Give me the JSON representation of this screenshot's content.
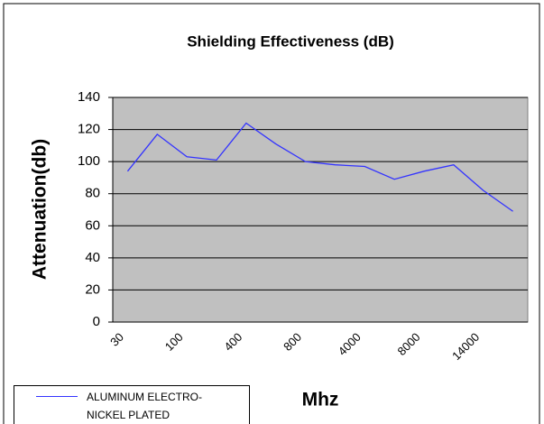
{
  "chart_data": {
    "type": "line",
    "title": "Shielding Effectiveness (dB)",
    "y_label": "Attenuation(db)",
    "x_label": "Mhz",
    "categories": [
      "30",
      null,
      "100",
      null,
      "400",
      null,
      "800",
      null,
      "4000",
      null,
      "8000",
      null,
      "14000",
      null
    ],
    "series": [
      {
        "name": "ALUMINUM ELECTRO-NICKEL PLATED",
        "color": "#3333ff",
        "values": [
          94,
          117,
          103,
          101,
          124,
          111,
          100,
          98,
          97,
          89,
          94,
          98,
          82,
          69
        ]
      }
    ],
    "ylim": [
      0,
      140
    ],
    "yticks": [
      0,
      20,
      40,
      60,
      80,
      100,
      120,
      140
    ],
    "grid": true
  }
}
